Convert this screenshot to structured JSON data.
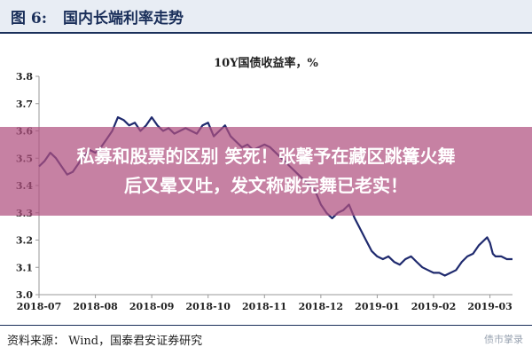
{
  "figure": {
    "label": "图 6:",
    "title": "国内长端利率走势"
  },
  "overlay": {
    "line1": "私募和股票的区别 笑死！张馨予在藏区跳篝火舞",
    "line2": "后又晕又吐，发文称跳完舞已老实！"
  },
  "source": "资料来源： Wind，国泰君安证券研究",
  "watermark": "债市掌录",
  "colors": {
    "line": "#1f2a6e",
    "axis": "#999999",
    "overlay": "#b05080"
  },
  "chart_data": {
    "type": "line",
    "title": "10Y国债收益率，%",
    "xlabel": "",
    "ylabel": "",
    "ylim": [
      3.0,
      3.8
    ],
    "yticks": [
      "3.0",
      "3.1",
      "3.2",
      "3.3",
      "3.4",
      "3.5",
      "3.6",
      "3.7",
      "3.8"
    ],
    "xticks": [
      "2018-07",
      "2018-08",
      "2018-09",
      "2018-10",
      "2018-11",
      "2018-12",
      "2019-01",
      "2019-02",
      "2019-03"
    ],
    "xrange": [
      0,
      8.4
    ],
    "grid": false,
    "series": [
      {
        "name": "",
        "points": [
          [
            0.0,
            3.47
          ],
          [
            0.1,
            3.49
          ],
          [
            0.2,
            3.52
          ],
          [
            0.3,
            3.5
          ],
          [
            0.4,
            3.47
          ],
          [
            0.5,
            3.44
          ],
          [
            0.6,
            3.45
          ],
          [
            0.7,
            3.48
          ],
          [
            0.8,
            3.51
          ],
          [
            0.9,
            3.53
          ],
          [
            1.0,
            3.52
          ],
          [
            1.1,
            3.54
          ],
          [
            1.2,
            3.57
          ],
          [
            1.3,
            3.6
          ],
          [
            1.4,
            3.65
          ],
          [
            1.5,
            3.64
          ],
          [
            1.6,
            3.62
          ],
          [
            1.7,
            3.63
          ],
          [
            1.8,
            3.6
          ],
          [
            1.9,
            3.62
          ],
          [
            2.0,
            3.65
          ],
          [
            2.1,
            3.62
          ],
          [
            2.2,
            3.6
          ],
          [
            2.3,
            3.61
          ],
          [
            2.4,
            3.59
          ],
          [
            2.5,
            3.6
          ],
          [
            2.6,
            3.61
          ],
          [
            2.7,
            3.6
          ],
          [
            2.8,
            3.59
          ],
          [
            2.9,
            3.62
          ],
          [
            3.0,
            3.63
          ],
          [
            3.1,
            3.58
          ],
          [
            3.2,
            3.6
          ],
          [
            3.3,
            3.62
          ],
          [
            3.4,
            3.58
          ],
          [
            3.5,
            3.56
          ],
          [
            3.6,
            3.54
          ],
          [
            3.7,
            3.55
          ],
          [
            3.8,
            3.53
          ],
          [
            3.9,
            3.54
          ],
          [
            4.0,
            3.55
          ],
          [
            4.1,
            3.54
          ],
          [
            4.2,
            3.52
          ],
          [
            4.3,
            3.5
          ],
          [
            4.4,
            3.48
          ],
          [
            4.5,
            3.46
          ],
          [
            4.6,
            3.44
          ],
          [
            4.7,
            3.42
          ],
          [
            4.8,
            3.4
          ],
          [
            4.9,
            3.38
          ],
          [
            5.0,
            3.33
          ],
          [
            5.1,
            3.3
          ],
          [
            5.2,
            3.28
          ],
          [
            5.3,
            3.3
          ],
          [
            5.4,
            3.31
          ],
          [
            5.5,
            3.33
          ],
          [
            5.6,
            3.28
          ],
          [
            5.7,
            3.24
          ],
          [
            5.8,
            3.2
          ],
          [
            5.9,
            3.16
          ],
          [
            6.0,
            3.14
          ],
          [
            6.1,
            3.13
          ],
          [
            6.2,
            3.14
          ],
          [
            6.3,
            3.12
          ],
          [
            6.4,
            3.11
          ],
          [
            6.5,
            3.13
          ],
          [
            6.6,
            3.14
          ],
          [
            6.7,
            3.12
          ],
          [
            6.8,
            3.1
          ],
          [
            6.9,
            3.09
          ],
          [
            7.0,
            3.08
          ],
          [
            7.1,
            3.08
          ],
          [
            7.2,
            3.07
          ],
          [
            7.3,
            3.08
          ],
          [
            7.4,
            3.09
          ],
          [
            7.5,
            3.12
          ],
          [
            7.6,
            3.14
          ],
          [
            7.7,
            3.15
          ],
          [
            7.8,
            3.18
          ],
          [
            7.9,
            3.2
          ],
          [
            7.95,
            3.21
          ],
          [
            8.0,
            3.19
          ],
          [
            8.05,
            3.15
          ],
          [
            8.1,
            3.14
          ],
          [
            8.2,
            3.14
          ],
          [
            8.3,
            3.13
          ],
          [
            8.4,
            3.13
          ]
        ]
      }
    ]
  }
}
